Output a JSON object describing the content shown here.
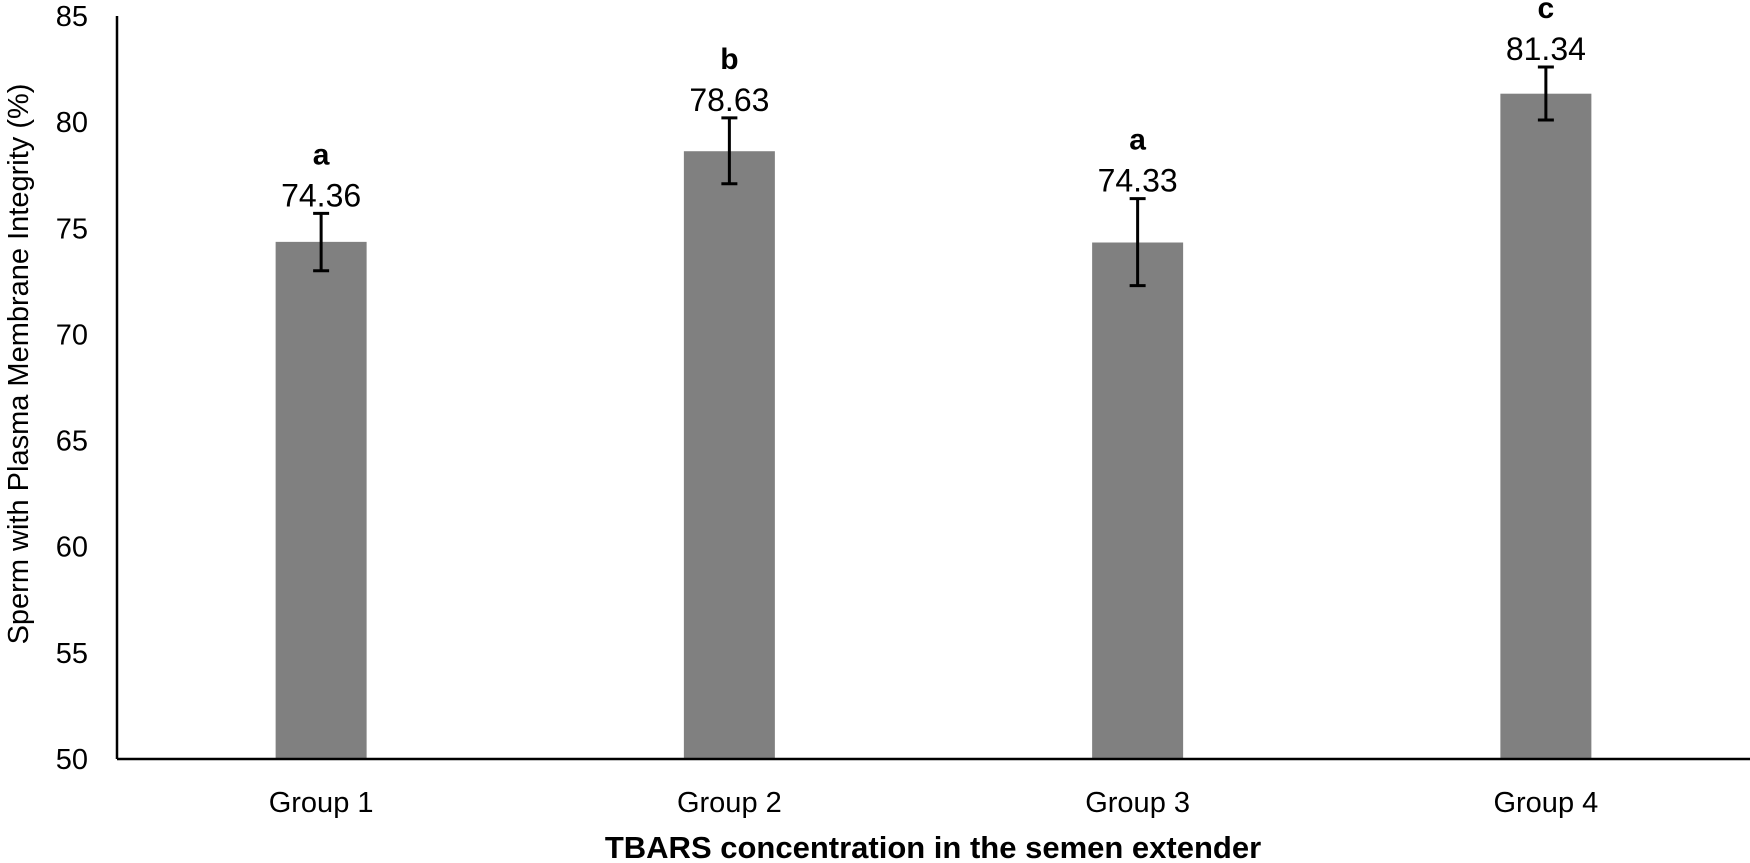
{
  "chart_data": {
    "type": "bar",
    "title": "",
    "xlabel": "TBARS concentration in the semen extender",
    "ylabel": "Sperm  with Plasma Membrane Integrity (%)",
    "ylim": [
      50,
      85
    ],
    "yticks": [
      "50",
      "55",
      "60",
      "65",
      "70",
      "75",
      "80",
      "85"
    ],
    "categories": [
      "Group 1",
      "Group 2",
      "Group 3",
      "Group 4"
    ],
    "values": [
      74.36,
      78.63,
      74.33,
      81.34
    ],
    "value_labels": [
      "74.36",
      "78.63",
      "74.33",
      "81.34"
    ],
    "error_low": [
      73.0,
      77.1,
      72.3,
      80.1
    ],
    "error_high": [
      75.7,
      80.2,
      76.4,
      82.6
    ],
    "significance": [
      "a",
      "b",
      "a",
      "c"
    ],
    "bar_color": "#808080",
    "grid": false,
    "legend": "none"
  }
}
